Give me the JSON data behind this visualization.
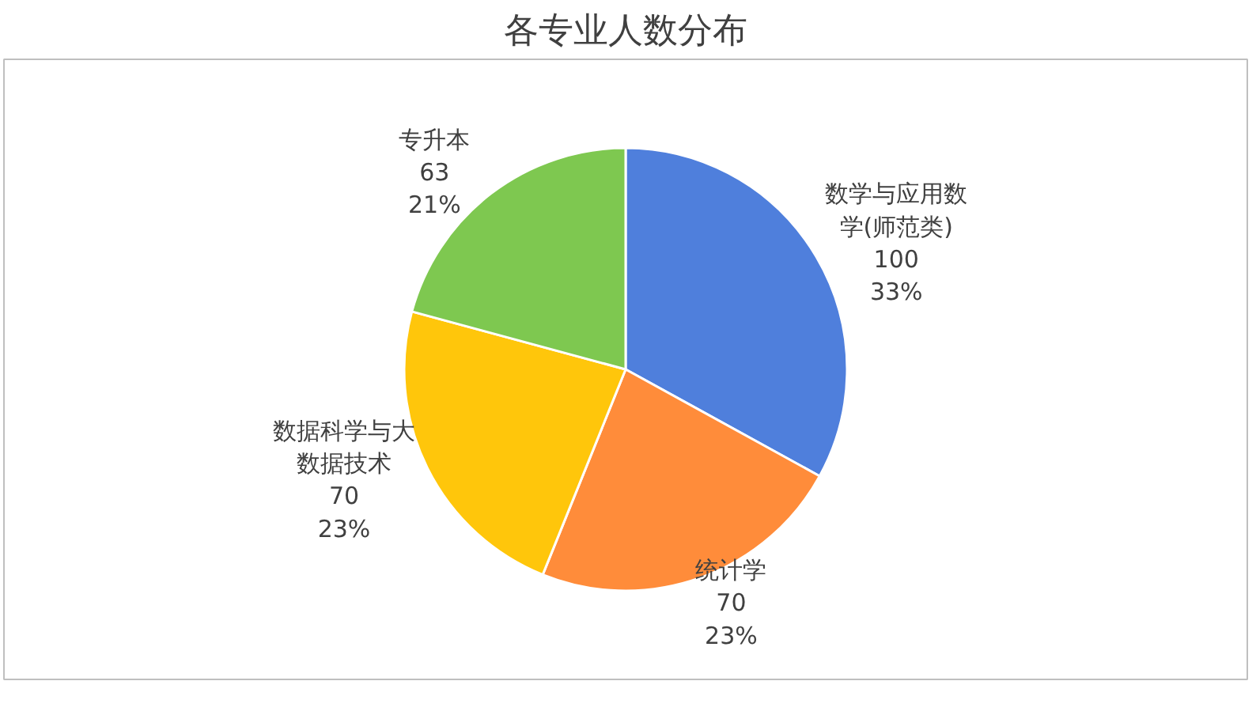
{
  "chart_data": {
    "type": "pie",
    "title": "各专业人数分布",
    "categories": [
      "数学与应用数学(师范类)",
      "统计学",
      "数据科学与大数据技术",
      "专升本"
    ],
    "values": [
      100,
      70,
      70,
      63
    ],
    "colors": [
      "#4f7fdc",
      "#ff8c3a",
      "#ffc60b",
      "#7ec850"
    ],
    "value_labels": [
      "100\n33%",
      "70\n23%",
      "70\n23%",
      "63\n21%"
    ]
  }
}
